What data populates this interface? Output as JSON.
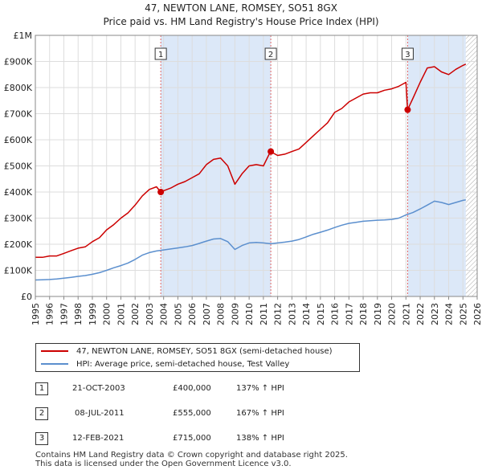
{
  "title_line1": "47, NEWTON LANE, ROMSEY, SO51 8GX",
  "title_line2": "Price paid vs. HM Land Registry's House Price Index (HPI)",
  "colors": {
    "property": "#cc0000",
    "hpi": "#5b8fce",
    "shade": "#dce8f8",
    "marker_line": "#e06666",
    "grid": "#dddddd"
  },
  "chart_data": {
    "type": "line",
    "title": "47, NEWTON LANE, ROMSEY, SO51 8GX — Price paid vs. HM Land Registry's House Price Index (HPI)",
    "xlim": [
      1995,
      2026
    ],
    "ylim": [
      0,
      1000000
    ],
    "x_ticks": [
      1995,
      1996,
      1997,
      1998,
      1999,
      2000,
      2001,
      2002,
      2003,
      2004,
      2005,
      2006,
      2007,
      2008,
      2009,
      2010,
      2011,
      2012,
      2013,
      2014,
      2015,
      2016,
      2017,
      2018,
      2019,
      2020,
      2021,
      2022,
      2023,
      2024,
      2025,
      2026
    ],
    "x_tick_labels": [
      "1995",
      "1996",
      "1997",
      "1998",
      "1999",
      "2000",
      "2001",
      "2002",
      "2003",
      "2004",
      "2005",
      "2006",
      "2007",
      "2008",
      "2009",
      "2010",
      "2011",
      "2012",
      "2013",
      "2014",
      "2015",
      "2016",
      "2017",
      "2018",
      "2019",
      "2020",
      "2021",
      "2022",
      "2023",
      "2024",
      "2025",
      "2026"
    ],
    "y_ticks": [
      0,
      100000,
      200000,
      300000,
      400000,
      500000,
      600000,
      700000,
      800000,
      900000,
      1000000
    ],
    "y_tick_labels": [
      "£0",
      "£100K",
      "£200K",
      "£300K",
      "£400K",
      "£500K",
      "£600K",
      "£700K",
      "£800K",
      "£900K",
      "£1M"
    ],
    "grid": true,
    "shaded_ranges": [
      [
        2003.8,
        2011.52
      ],
      [
        2021.12,
        2025.2
      ]
    ],
    "hatched_from": 2025.2,
    "series": [
      {
        "name": "47, NEWTON LANE, ROMSEY, SO51 8GX (semi-detached house)",
        "color": "#cc0000",
        "x": [
          1995,
          1995.5,
          1996,
          1996.5,
          1997,
          1997.5,
          1998,
          1998.5,
          1999,
          1999.5,
          2000,
          2000.5,
          2001,
          2001.5,
          2002,
          2002.5,
          2003,
          2003.5,
          2003.8,
          2004,
          2004.5,
          2005,
          2005.5,
          2006,
          2006.5,
          2007,
          2007.5,
          2008,
          2008.5,
          2009,
          2009.5,
          2010,
          2010.5,
          2011,
          2011.5,
          2012,
          2012.5,
          2013,
          2013.5,
          2014,
          2014.5,
          2015,
          2015.5,
          2016,
          2016.5,
          2017,
          2017.5,
          2018,
          2018.5,
          2019,
          2019.5,
          2020,
          2020.5,
          2021,
          2021.12,
          2021.5,
          2022,
          2022.5,
          2023,
          2023.5,
          2024,
          2024.5,
          2025,
          2025.2
        ],
        "y": [
          150000,
          150000,
          155000,
          155000,
          165000,
          175000,
          185000,
          190000,
          210000,
          225000,
          255000,
          275000,
          300000,
          320000,
          350000,
          385000,
          410000,
          420000,
          400000,
          405000,
          415000,
          430000,
          440000,
          455000,
          470000,
          505000,
          525000,
          530000,
          500000,
          430000,
          470000,
          500000,
          505000,
          500000,
          555000,
          540000,
          545000,
          555000,
          565000,
          590000,
          615000,
          640000,
          665000,
          705000,
          720000,
          745000,
          760000,
          775000,
          780000,
          780000,
          790000,
          795000,
          805000,
          820000,
          715000,
          760000,
          820000,
          875000,
          880000,
          860000,
          850000,
          870000,
          885000,
          890000
        ]
      },
      {
        "name": "HPI: Average price, semi-detached house, Test Valley",
        "color": "#5b8fce",
        "x": [
          1995,
          1995.5,
          1996,
          1996.5,
          1997,
          1997.5,
          1998,
          1998.5,
          1999,
          1999.5,
          2000,
          2000.5,
          2001,
          2001.5,
          2002,
          2002.5,
          2003,
          2003.5,
          2004,
          2004.5,
          2005,
          2005.5,
          2006,
          2006.5,
          2007,
          2007.5,
          2008,
          2008.5,
          2009,
          2009.5,
          2010,
          2010.5,
          2011,
          2011.5,
          2012,
          2012.5,
          2013,
          2013.5,
          2014,
          2014.5,
          2015,
          2015.5,
          2016,
          2016.5,
          2017,
          2017.5,
          2018,
          2018.5,
          2019,
          2019.5,
          2020,
          2020.5,
          2021,
          2021.5,
          2022,
          2022.5,
          2023,
          2023.5,
          2024,
          2024.5,
          2025,
          2025.2
        ],
        "y": [
          63000,
          64000,
          65000,
          67000,
          70000,
          73000,
          77000,
          80000,
          85000,
          91000,
          100000,
          110000,
          118000,
          128000,
          142000,
          158000,
          168000,
          174000,
          178000,
          182000,
          186000,
          190000,
          195000,
          203000,
          212000,
          220000,
          222000,
          210000,
          180000,
          195000,
          205000,
          207000,
          205000,
          202000,
          205000,
          208000,
          212000,
          218000,
          228000,
          238000,
          246000,
          254000,
          264000,
          273000,
          280000,
          284000,
          288000,
          290000,
          292000,
          293000,
          295000,
          300000,
          312000,
          322000,
          335000,
          350000,
          365000,
          360000,
          352000,
          360000,
          368000,
          370000
        ]
      }
    ],
    "sales": [
      {
        "label": "1",
        "x": 2003.8,
        "y": 400000
      },
      {
        "label": "2",
        "x": 2011.52,
        "y": 555000
      },
      {
        "label": "3",
        "x": 2021.12,
        "y": 715000
      }
    ]
  },
  "legend": {
    "property": "47, NEWTON LANE, ROMSEY, SO51 8GX (semi-detached house)",
    "hpi": "HPI: Average price, semi-detached house, Test Valley"
  },
  "transactions": [
    {
      "num": "1",
      "date": "21-OCT-2003",
      "price": "£400,000",
      "hpi": "137% ↑ HPI"
    },
    {
      "num": "2",
      "date": "08-JUL-2011",
      "price": "£555,000",
      "hpi": "167% ↑ HPI"
    },
    {
      "num": "3",
      "date": "12-FEB-2021",
      "price": "£715,000",
      "hpi": "138% ↑ HPI"
    }
  ],
  "footer": {
    "line1": "Contains HM Land Registry data © Crown copyright and database right 2025.",
    "line2": "This data is licensed under the Open Government Licence v3.0."
  }
}
